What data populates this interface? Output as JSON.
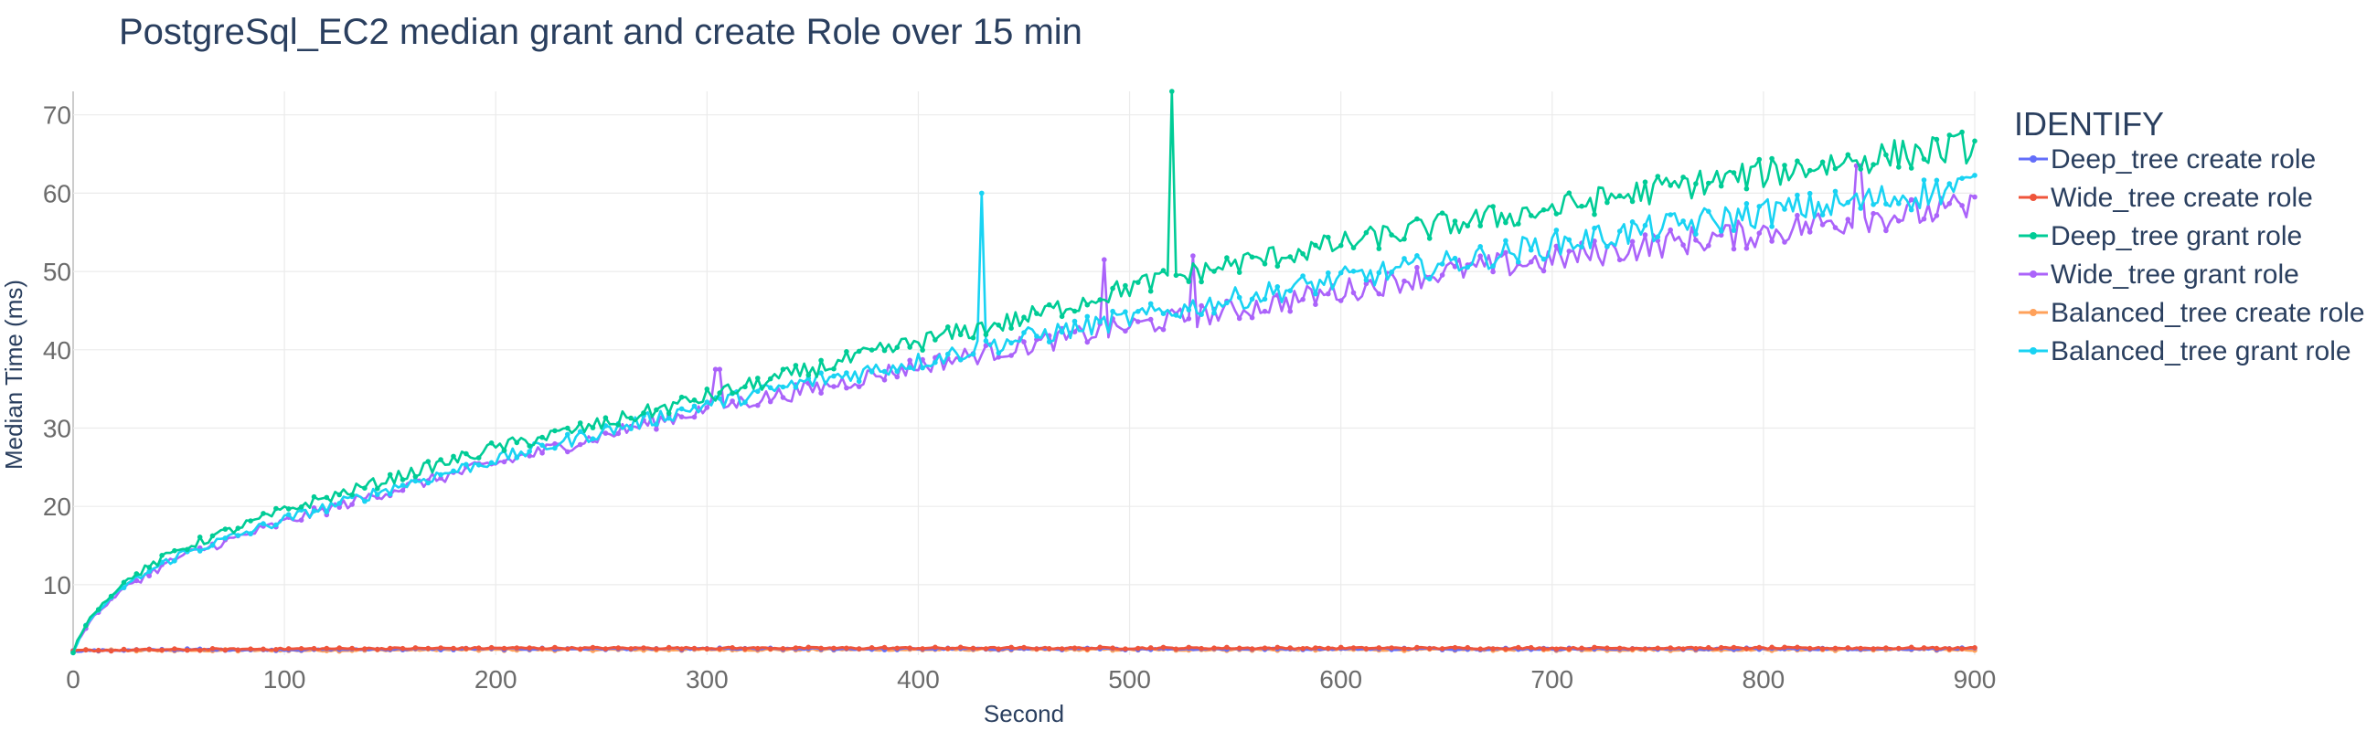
{
  "chart_data": {
    "type": "line",
    "title": "PostgreSql_EC2 median grant and create Role over 15 min",
    "xlabel": "Second",
    "ylabel": "Median Time (ms)",
    "xlim": [
      0,
      900
    ],
    "ylim": [
      1,
      73
    ],
    "x_ticks": [
      0,
      100,
      200,
      300,
      400,
      500,
      600,
      700,
      800,
      900
    ],
    "y_ticks": [
      10,
      20,
      30,
      40,
      50,
      60,
      70
    ],
    "grid": true,
    "legend_title": "IDENTIFY",
    "legend_position": "right",
    "series": [
      {
        "name": "Deep_tree create role",
        "color": "#636efa",
        "x": [
          0,
          5,
          50,
          100,
          200,
          300,
          400,
          500,
          600,
          700,
          800,
          900
        ],
        "y": [
          1.5,
          1.6,
          1.7,
          1.7,
          1.8,
          1.8,
          1.8,
          1.8,
          1.8,
          1.8,
          1.8,
          1.8
        ]
      },
      {
        "name": "Wide_tree create role",
        "color": "#ef553b",
        "x": [
          0,
          5,
          50,
          100,
          200,
          300,
          400,
          500,
          600,
          700,
          800,
          900
        ],
        "y": [
          1.5,
          1.6,
          1.7,
          1.8,
          1.9,
          1.9,
          1.9,
          1.9,
          1.9,
          1.9,
          1.9,
          1.9
        ]
      },
      {
        "name": "Deep_tree grant role",
        "color": "#00cc96",
        "x": [
          0,
          5,
          10,
          25,
          50,
          100,
          150,
          200,
          250,
          300,
          350,
          400,
          450,
          500,
          520,
          550,
          600,
          650,
          700,
          750,
          800,
          850,
          900
        ],
        "y": [
          1.5,
          4.5,
          6.5,
          10.5,
          14.5,
          19.5,
          23.5,
          27.5,
          30.5,
          34,
          37.5,
          41,
          44,
          48,
          73,
          51,
          53.5,
          56,
          58,
          60.5,
          62.5,
          64.5,
          66
        ],
        "spikes": [
          {
            "x": 520,
            "y": 73
          }
        ]
      },
      {
        "name": "Wide_tree grant role",
        "color": "#ab63fa",
        "x": [
          0,
          5,
          10,
          25,
          50,
          100,
          150,
          200,
          250,
          300,
          350,
          400,
          450,
          500,
          530,
          550,
          600,
          650,
          700,
          750,
          800,
          850,
          900
        ],
        "y": [
          1.5,
          4.2,
          6.0,
          9.8,
          13.5,
          18.0,
          22.0,
          25.5,
          29.0,
          32.5,
          35.0,
          38.0,
          40.5,
          43.0,
          52,
          45.0,
          47.5,
          50.0,
          51.5,
          53.5,
          55.0,
          57.0,
          58.0
        ],
        "spikes": [
          {
            "x": 305,
            "y": 37.5
          },
          {
            "x": 488,
            "y": 51.5
          },
          {
            "x": 530,
            "y": 52
          },
          {
            "x": 845,
            "y": 63.5
          }
        ]
      },
      {
        "name": "Balanced_tree create role",
        "color": "#ffa15a",
        "x": [
          0,
          5,
          50,
          100,
          200,
          300,
          400,
          500,
          600,
          700,
          800,
          900
        ],
        "y": [
          1.5,
          1.6,
          1.6,
          1.6,
          1.7,
          1.7,
          1.7,
          1.7,
          1.7,
          1.7,
          1.7,
          1.7
        ]
      },
      {
        "name": "Balanced_tree grant role",
        "color": "#19d3f3",
        "x": [
          0,
          5,
          10,
          25,
          50,
          100,
          150,
          200,
          250,
          300,
          350,
          400,
          430,
          450,
          500,
          550,
          600,
          650,
          700,
          750,
          800,
          850,
          900
        ],
        "y": [
          1.5,
          4.3,
          6.2,
          10.0,
          13.8,
          18.3,
          22.3,
          26.0,
          29.5,
          33.0,
          36.0,
          38.5,
          60,
          41.5,
          44.0,
          46.5,
          49.0,
          51.0,
          53.5,
          55.5,
          57.5,
          59.0,
          61.0
        ],
        "spikes": [
          {
            "x": 430,
            "y": 60
          }
        ]
      }
    ]
  }
}
